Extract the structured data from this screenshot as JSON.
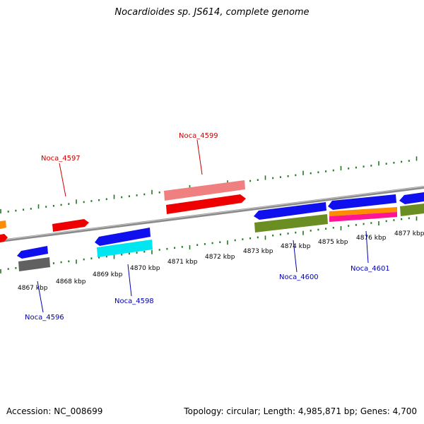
{
  "title": "Nocardioides sp. JS614, complete genome",
  "footer": {
    "accession": "Accession: NC_008699",
    "summary": "Topology: circular; Length: 4,985,871 bp; Genes: 4,700"
  },
  "colors": {
    "backbone": "#8a8a8a",
    "tick": "#1f7a1f",
    "label_top": "#cc0000",
    "label_bottom": "#0000b0"
  },
  "kbp_labels": [
    "4867 kbp",
    "4868 kbp",
    "4869 kbp",
    "4870 kbp",
    "4871 kbp",
    "4872 kbp",
    "4873 kbp",
    "4874 kbp",
    "4875 kbp",
    "4876 kbp",
    "4877 kbp"
  ],
  "gene_labels": [
    {
      "id": "Noca_4597",
      "strand": "top"
    },
    {
      "id": "Noca_4599",
      "strand": "top"
    },
    {
      "id": "Noca_4596",
      "strand": "bottom"
    },
    {
      "id": "Noca_4598",
      "strand": "bottom"
    },
    {
      "id": "Noca_4600",
      "strand": "bottom"
    },
    {
      "id": "Noca_4601",
      "strand": "bottom"
    }
  ]
}
